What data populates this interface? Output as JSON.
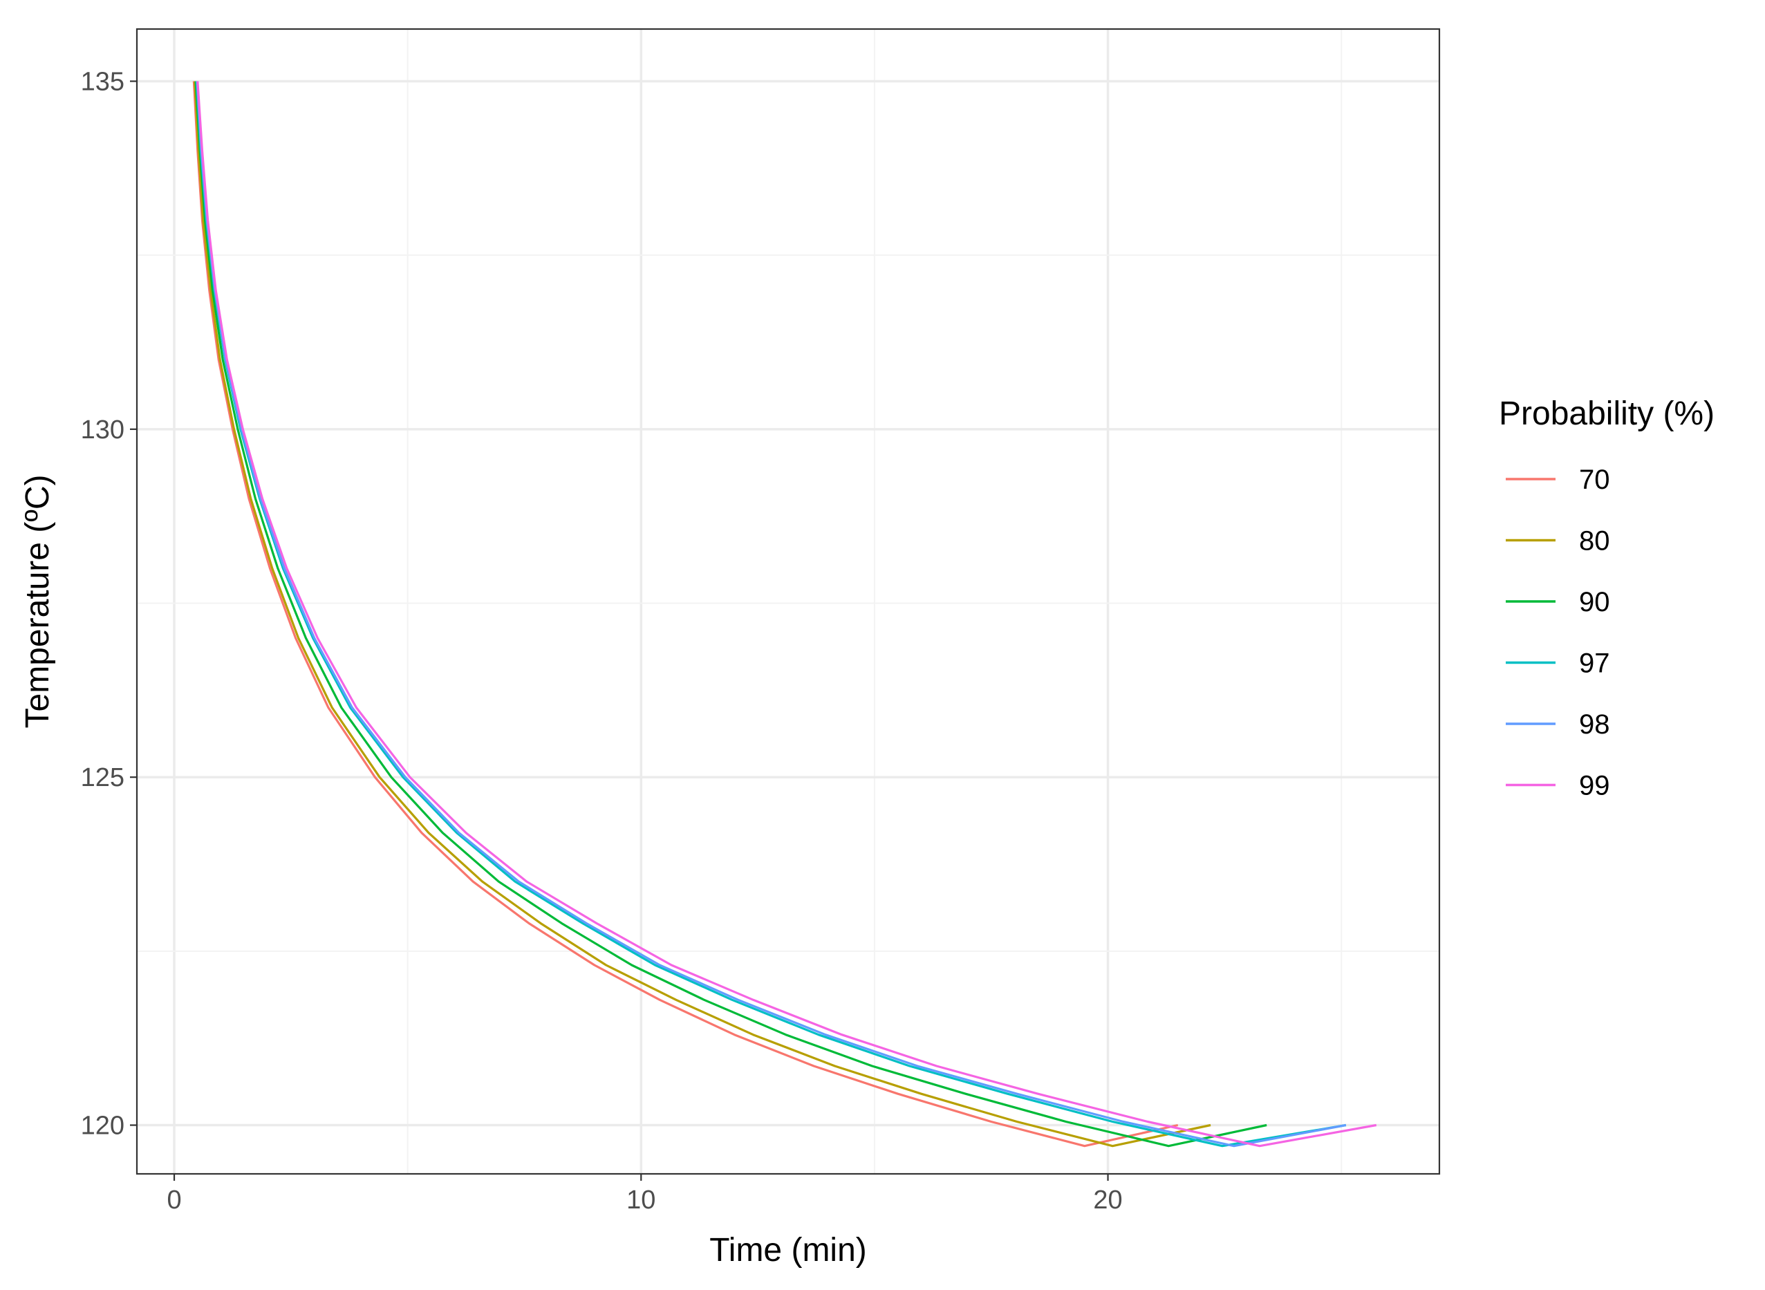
{
  "chart_data": {
    "type": "line",
    "title": "",
    "xlabel": "Time (min)",
    "ylabel": "Temperature (ºC)",
    "xlim": [
      -0.8,
      27.1
    ],
    "ylim": [
      119.3,
      135.75
    ],
    "x_ticks": [
      0,
      10,
      20
    ],
    "y_ticks": [
      120,
      125,
      130,
      135
    ],
    "grid": true,
    "legend": {
      "title": "Probability (%)",
      "position": "right"
    },
    "series": [
      {
        "name": "70",
        "color": "#F8766D",
        "points": [
          [
            0.42,
            135
          ],
          [
            0.5,
            134
          ],
          [
            0.6,
            133
          ],
          [
            0.75,
            132
          ],
          [
            0.95,
            131
          ],
          [
            1.25,
            130
          ],
          [
            1.6,
            129
          ],
          [
            2.05,
            128
          ],
          [
            2.6,
            127
          ],
          [
            3.3,
            126
          ],
          [
            4.3,
            125
          ],
          [
            5.3,
            124.2
          ],
          [
            6.4,
            123.5
          ],
          [
            7.6,
            122.9
          ],
          [
            9,
            122.3
          ],
          [
            10.4,
            121.8
          ],
          [
            12,
            121.3
          ],
          [
            13.7,
            120.85
          ],
          [
            15.5,
            120.45
          ],
          [
            17.5,
            120.05
          ],
          [
            19.5,
            119.7
          ],
          [
            21.5,
            120
          ]
        ]
      },
      {
        "name": "80",
        "color": "#B79F00",
        "points": [
          [
            0.44,
            135
          ],
          [
            0.52,
            134
          ],
          [
            0.62,
            133
          ],
          [
            0.78,
            132
          ],
          [
            0.98,
            131
          ],
          [
            1.28,
            130
          ],
          [
            1.64,
            129
          ],
          [
            2.1,
            128
          ],
          [
            2.66,
            127
          ],
          [
            3.38,
            126
          ],
          [
            4.4,
            125
          ],
          [
            5.45,
            124.2
          ],
          [
            6.6,
            123.5
          ],
          [
            7.85,
            122.9
          ],
          [
            9.25,
            122.3
          ],
          [
            10.75,
            121.8
          ],
          [
            12.4,
            121.3
          ],
          [
            14.15,
            120.85
          ],
          [
            16,
            120.45
          ],
          [
            18.05,
            120.05
          ],
          [
            20.1,
            119.7
          ],
          [
            22.2,
            120
          ]
        ]
      },
      {
        "name": "90",
        "color": "#00BA38",
        "points": [
          [
            0.46,
            135
          ],
          [
            0.55,
            134
          ],
          [
            0.66,
            133
          ],
          [
            0.82,
            132
          ],
          [
            1.04,
            131
          ],
          [
            1.36,
            130
          ],
          [
            1.74,
            129
          ],
          [
            2.22,
            128
          ],
          [
            2.82,
            127
          ],
          [
            3.58,
            126
          ],
          [
            4.65,
            125
          ],
          [
            5.75,
            124.2
          ],
          [
            6.95,
            123.5
          ],
          [
            8.3,
            122.9
          ],
          [
            9.8,
            122.3
          ],
          [
            11.35,
            121.8
          ],
          [
            13.1,
            121.3
          ],
          [
            14.95,
            120.85
          ],
          [
            16.95,
            120.45
          ],
          [
            19.1,
            120.05
          ],
          [
            21.3,
            119.7
          ],
          [
            23.4,
            120
          ]
        ]
      },
      {
        "name": "97",
        "color": "#00BFC4",
        "points": [
          [
            0.48,
            135
          ],
          [
            0.57,
            134
          ],
          [
            0.69,
            133
          ],
          [
            0.86,
            132
          ],
          [
            1.09,
            131
          ],
          [
            1.42,
            130
          ],
          [
            1.83,
            129
          ],
          [
            2.33,
            128
          ],
          [
            2.97,
            127
          ],
          [
            3.77,
            126
          ],
          [
            4.9,
            125
          ],
          [
            6.05,
            124.2
          ],
          [
            7.3,
            123.5
          ],
          [
            8.75,
            122.9
          ],
          [
            10.3,
            122.3
          ],
          [
            11.95,
            121.8
          ],
          [
            13.8,
            121.3
          ],
          [
            15.75,
            120.85
          ],
          [
            17.85,
            120.45
          ],
          [
            20.1,
            120.05
          ],
          [
            22.45,
            119.7
          ],
          [
            25.1,
            120
          ]
        ]
      },
      {
        "name": "98",
        "color": "#619CFF",
        "points": [
          [
            0.49,
            135
          ],
          [
            0.58,
            134
          ],
          [
            0.7,
            133
          ],
          [
            0.87,
            132
          ],
          [
            1.1,
            131
          ],
          [
            1.44,
            130
          ],
          [
            1.85,
            129
          ],
          [
            2.36,
            128
          ],
          [
            3,
            127
          ],
          [
            3.81,
            126
          ],
          [
            4.95,
            125
          ],
          [
            6.1,
            124.2
          ],
          [
            7.38,
            123.5
          ],
          [
            8.83,
            122.9
          ],
          [
            10.4,
            122.3
          ],
          [
            12.08,
            121.8
          ],
          [
            13.95,
            121.3
          ],
          [
            15.92,
            120.85
          ],
          [
            18.05,
            120.45
          ],
          [
            20.33,
            120.05
          ],
          [
            22.7,
            119.7
          ],
          [
            25.1,
            120
          ]
        ]
      },
      {
        "name": "99",
        "color": "#F564E3",
        "points": [
          [
            0.5,
            135
          ],
          [
            0.6,
            134
          ],
          [
            0.72,
            133
          ],
          [
            0.89,
            132
          ],
          [
            1.13,
            131
          ],
          [
            1.47,
            130
          ],
          [
            1.89,
            129
          ],
          [
            2.41,
            128
          ],
          [
            3.07,
            127
          ],
          [
            3.9,
            126
          ],
          [
            5.05,
            125
          ],
          [
            6.25,
            124.2
          ],
          [
            7.55,
            123.5
          ],
          [
            9.05,
            122.9
          ],
          [
            10.65,
            122.3
          ],
          [
            12.4,
            121.8
          ],
          [
            14.3,
            121.3
          ],
          [
            16.33,
            120.85
          ],
          [
            18.5,
            120.45
          ],
          [
            20.85,
            120.05
          ],
          [
            23.25,
            119.7
          ],
          [
            25.75,
            120
          ]
        ]
      }
    ]
  }
}
